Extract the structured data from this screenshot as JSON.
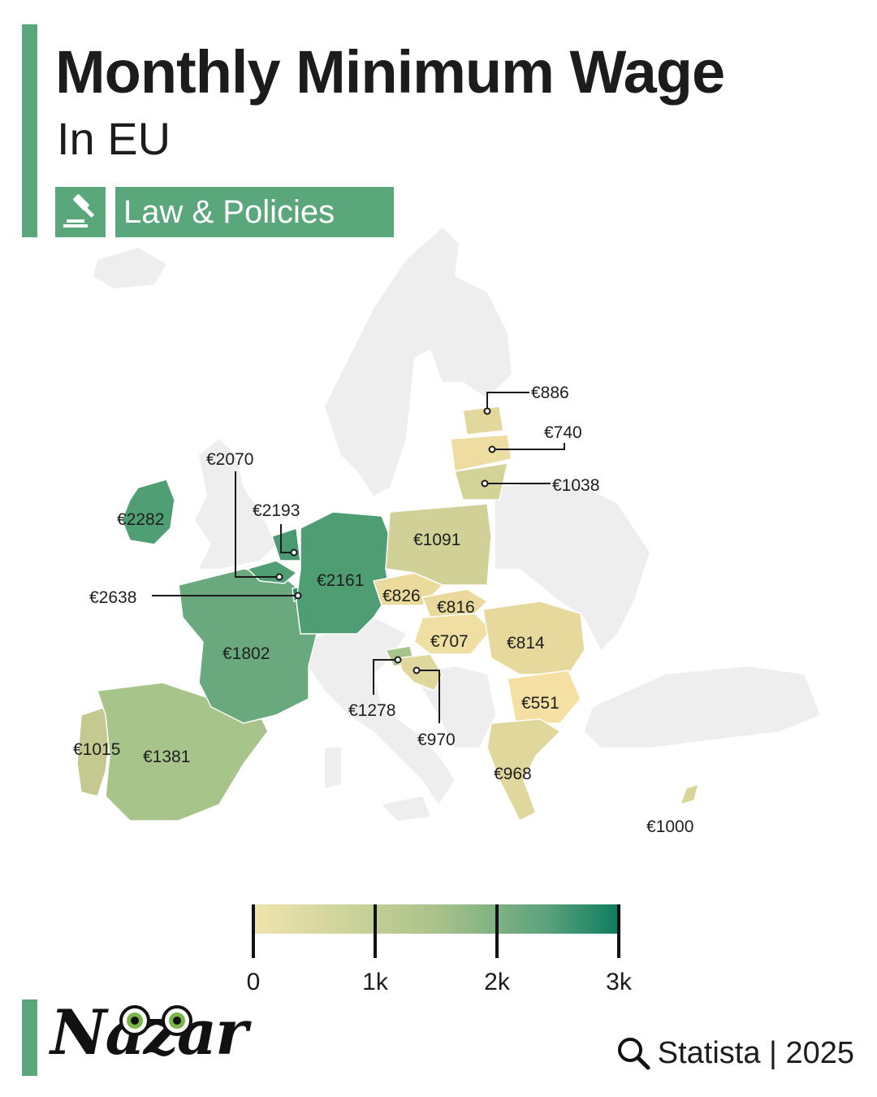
{
  "header": {
    "title": "Monthly Minimum Wage",
    "subtitle": "In EU",
    "category": "Law & Policies",
    "category_icon": "gavel-icon"
  },
  "colors": {
    "accent": "#5aa77c",
    "no_data": "#eeeeee",
    "scale_low": "#f1e4ad",
    "scale_mid": "#a9c38a",
    "scale_high": "#0c7b5e"
  },
  "legend": {
    "ticks": [
      "0",
      "1k",
      "2k",
      "3k"
    ]
  },
  "map_data": {
    "unit": "€ per month",
    "countries": [
      {
        "id": "ireland",
        "label": "€2282",
        "value": 2282
      },
      {
        "id": "luxembourg",
        "label": "€2638",
        "value": 2638
      },
      {
        "id": "netherlands",
        "label": "€2193",
        "value": 2193
      },
      {
        "id": "germany",
        "label": "€2161",
        "value": 2161
      },
      {
        "id": "belgium",
        "label": "€2070",
        "value": 2070
      },
      {
        "id": "france",
        "label": "€1802",
        "value": 1802
      },
      {
        "id": "spain",
        "label": "€1381",
        "value": 1381
      },
      {
        "id": "slovenia",
        "label": "€1278",
        "value": 1278
      },
      {
        "id": "poland",
        "label": "€1091",
        "value": 1091
      },
      {
        "id": "lithuania",
        "label": "€1038",
        "value": 1038
      },
      {
        "id": "portugal",
        "label": "€1015",
        "value": 1015
      },
      {
        "id": "cyprus",
        "label": "€1000",
        "value": 1000
      },
      {
        "id": "croatia",
        "label": "€970",
        "value": 970
      },
      {
        "id": "greece",
        "label": "€968",
        "value": 968
      },
      {
        "id": "estonia",
        "label": "€886",
        "value": 886
      },
      {
        "id": "czechia",
        "label": "€826",
        "value": 826
      },
      {
        "id": "slovakia",
        "label": "€816",
        "value": 816
      },
      {
        "id": "romania",
        "label": "€814",
        "value": 814
      },
      {
        "id": "latvia",
        "label": "€740",
        "value": 740
      },
      {
        "id": "hungary",
        "label": "€707",
        "value": 707
      },
      {
        "id": "bulgaria",
        "label": "€551",
        "value": 551
      }
    ]
  },
  "branding": {
    "logo": "Nazar",
    "source": "Statista | 2025",
    "source_icon": "search-icon"
  }
}
